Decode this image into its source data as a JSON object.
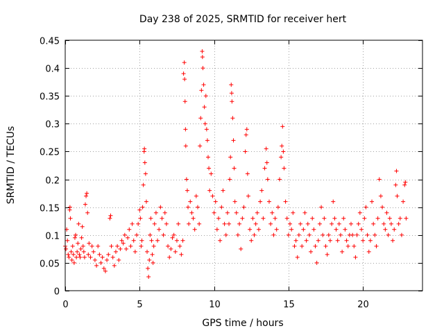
{
  "chart_data": {
    "type": "scatter",
    "title": "Day 238 of 2025, SRMTID for receiver hert",
    "xlabel": "GPS time / hours",
    "ylabel": "SRMTID / TECUs",
    "xlim": [
      0,
      24
    ],
    "ylim": [
      0,
      0.45
    ],
    "xticks": [
      0,
      5,
      10,
      15,
      20
    ],
    "yticks": [
      0,
      0.05,
      0.1,
      0.15,
      0.2,
      0.25,
      0.3,
      0.35,
      0.4,
      0.45
    ],
    "xtick_labels": [
      "0",
      "5",
      "10",
      "15",
      "20"
    ],
    "ytick_labels": [
      "0",
      "0.05",
      "0.1",
      "0.15",
      "0.2",
      "0.25",
      "0.3",
      "0.35",
      "0.4",
      "0.45"
    ],
    "grid": true,
    "marker": "+",
    "color": "#ff0000",
    "series": [
      {
        "name": "SRMTID",
        "points": [
          [
            0.0,
            0.08
          ],
          [
            0.05,
            0.075
          ],
          [
            0.1,
            0.11
          ],
          [
            0.15,
            0.09
          ],
          [
            0.2,
            0.065
          ],
          [
            0.25,
            0.06
          ],
          [
            0.3,
            0.145
          ],
          [
            0.32,
            0.15
          ],
          [
            0.35,
            0.13
          ],
          [
            0.4,
            0.07
          ],
          [
            0.45,
            0.055
          ],
          [
            0.5,
            0.08
          ],
          [
            0.55,
            0.065
          ],
          [
            0.6,
            0.05
          ],
          [
            0.65,
            0.095
          ],
          [
            0.7,
            0.1
          ],
          [
            0.75,
            0.06
          ],
          [
            0.8,
            0.07
          ],
          [
            0.85,
            0.085
          ],
          [
            0.9,
            0.12
          ],
          [
            0.95,
            0.065
          ],
          [
            1.0,
            0.06
          ],
          [
            1.05,
            0.075
          ],
          [
            1.1,
            0.095
          ],
          [
            1.15,
            0.115
          ],
          [
            1.2,
            0.08
          ],
          [
            1.25,
            0.07
          ],
          [
            1.3,
            0.06
          ],
          [
            1.35,
            0.155
          ],
          [
            1.4,
            0.17
          ],
          [
            1.45,
            0.175
          ],
          [
            1.5,
            0.14
          ],
          [
            1.55,
            0.065
          ],
          [
            1.6,
            0.085
          ],
          [
            1.7,
            0.06
          ],
          [
            1.8,
            0.08
          ],
          [
            1.9,
            0.07
          ],
          [
            2.0,
            0.055
          ],
          [
            2.1,
            0.045
          ],
          [
            2.2,
            0.08
          ],
          [
            2.3,
            0.065
          ],
          [
            2.4,
            0.05
          ],
          [
            2.5,
            0.06
          ],
          [
            2.6,
            0.04
          ],
          [
            2.7,
            0.035
          ],
          [
            2.8,
            0.055
          ],
          [
            2.9,
            0.065
          ],
          [
            3.0,
            0.13
          ],
          [
            3.05,
            0.135
          ],
          [
            3.1,
            0.08
          ],
          [
            3.2,
            0.06
          ],
          [
            3.3,
            0.045
          ],
          [
            3.4,
            0.07
          ],
          [
            3.5,
            0.08
          ],
          [
            3.6,
            0.055
          ],
          [
            3.7,
            0.075
          ],
          [
            3.8,
            0.09
          ],
          [
            3.9,
            0.085
          ],
          [
            4.0,
            0.1
          ],
          [
            4.1,
            0.075
          ],
          [
            4.2,
            0.095
          ],
          [
            4.3,
            0.11
          ],
          [
            4.4,
            0.08
          ],
          [
            4.5,
            0.12
          ],
          [
            4.6,
            0.09
          ],
          [
            4.7,
            0.07
          ],
          [
            4.8,
            0.1
          ],
          [
            4.9,
            0.12
          ],
          [
            5.0,
            0.145
          ],
          [
            5.05,
            0.13
          ],
          [
            5.1,
            0.08
          ],
          [
            5.15,
            0.09
          ],
          [
            5.2,
            0.15
          ],
          [
            5.25,
            0.19
          ],
          [
            5.3,
            0.25
          ],
          [
            5.32,
            0.255
          ],
          [
            5.35,
            0.23
          ],
          [
            5.4,
            0.21
          ],
          [
            5.45,
            0.16
          ],
          [
            5.5,
            0.07
          ],
          [
            5.55,
            0.04
          ],
          [
            5.6,
            0.025
          ],
          [
            5.65,
            0.055
          ],
          [
            5.7,
            0.1
          ],
          [
            5.75,
            0.13
          ],
          [
            5.8,
            0.09
          ],
          [
            5.85,
            0.065
          ],
          [
            5.9,
            0.05
          ],
          [
            5.95,
            0.08
          ],
          [
            6.0,
            0.12
          ],
          [
            6.1,
            0.14
          ],
          [
            6.2,
            0.09
          ],
          [
            6.3,
            0.11
          ],
          [
            6.4,
            0.15
          ],
          [
            6.5,
            0.13
          ],
          [
            6.6,
            0.1
          ],
          [
            6.7,
            0.14
          ],
          [
            6.8,
            0.12
          ],
          [
            6.9,
            0.08
          ],
          [
            7.0,
            0.06
          ],
          [
            7.1,
            0.075
          ],
          [
            7.2,
            0.095
          ],
          [
            7.3,
            0.1
          ],
          [
            7.4,
            0.07
          ],
          [
            7.5,
            0.09
          ],
          [
            7.6,
            0.12
          ],
          [
            7.7,
            0.08
          ],
          [
            7.8,
            0.065
          ],
          [
            7.9,
            0.09
          ],
          [
            7.95,
            0.39
          ],
          [
            8.0,
            0.41
          ],
          [
            8.02,
            0.38
          ],
          [
            8.05,
            0.34
          ],
          [
            8.08,
            0.29
          ],
          [
            8.1,
            0.26
          ],
          [
            8.15,
            0.2
          ],
          [
            8.2,
            0.18
          ],
          [
            8.25,
            0.15
          ],
          [
            8.3,
            0.12
          ],
          [
            8.4,
            0.16
          ],
          [
            8.5,
            0.14
          ],
          [
            8.6,
            0.13
          ],
          [
            8.7,
            0.11
          ],
          [
            8.8,
            0.17
          ],
          [
            8.9,
            0.15
          ],
          [
            9.0,
            0.12
          ],
          [
            9.05,
            0.26
          ],
          [
            9.1,
            0.31
          ],
          [
            9.15,
            0.36
          ],
          [
            9.2,
            0.43
          ],
          [
            9.22,
            0.42
          ],
          [
            9.25,
            0.4
          ],
          [
            9.3,
            0.37
          ],
          [
            9.35,
            0.33
          ],
          [
            9.4,
            0.3
          ],
          [
            9.45,
            0.35
          ],
          [
            9.5,
            0.29
          ],
          [
            9.55,
            0.27
          ],
          [
            9.6,
            0.24
          ],
          [
            9.65,
            0.22
          ],
          [
            9.7,
            0.18
          ],
          [
            9.8,
            0.21
          ],
          [
            9.9,
            0.17
          ],
          [
            10.0,
            0.14
          ],
          [
            10.1,
            0.16
          ],
          [
            10.2,
            0.11
          ],
          [
            10.3,
            0.13
          ],
          [
            10.4,
            0.09
          ],
          [
            10.5,
            0.15
          ],
          [
            10.6,
            0.18
          ],
          [
            10.7,
            0.12
          ],
          [
            10.8,
            0.1
          ],
          [
            10.9,
            0.14
          ],
          [
            11.0,
            0.12
          ],
          [
            11.05,
            0.2
          ],
          [
            11.1,
            0.24
          ],
          [
            11.15,
            0.37
          ],
          [
            11.18,
            0.355
          ],
          [
            11.2,
            0.34
          ],
          [
            11.25,
            0.31
          ],
          [
            11.3,
            0.27
          ],
          [
            11.35,
            0.22
          ],
          [
            11.4,
            0.16
          ],
          [
            11.5,
            0.14
          ],
          [
            11.6,
            0.1
          ],
          [
            11.7,
            0.12
          ],
          [
            11.8,
            0.075
          ],
          [
            11.9,
            0.13
          ],
          [
            12.0,
            0.15
          ],
          [
            12.1,
            0.25
          ],
          [
            12.15,
            0.28
          ],
          [
            12.2,
            0.29
          ],
          [
            12.25,
            0.21
          ],
          [
            12.3,
            0.17
          ],
          [
            12.4,
            0.11
          ],
          [
            12.5,
            0.09
          ],
          [
            12.6,
            0.13
          ],
          [
            12.7,
            0.1
          ],
          [
            12.8,
            0.12
          ],
          [
            12.9,
            0.14
          ],
          [
            13.0,
            0.11
          ],
          [
            13.1,
            0.16
          ],
          [
            13.2,
            0.18
          ],
          [
            13.3,
            0.13
          ],
          [
            13.4,
            0.22
          ],
          [
            13.5,
            0.255
          ],
          [
            13.55,
            0.23
          ],
          [
            13.6,
            0.2
          ],
          [
            13.7,
            0.16
          ],
          [
            13.8,
            0.12
          ],
          [
            13.9,
            0.14
          ],
          [
            14.0,
            0.1
          ],
          [
            14.1,
            0.13
          ],
          [
            14.2,
            0.11
          ],
          [
            14.3,
            0.15
          ],
          [
            14.4,
            0.2
          ],
          [
            14.5,
            0.24
          ],
          [
            14.55,
            0.26
          ],
          [
            14.6,
            0.295
          ],
          [
            14.65,
            0.25
          ],
          [
            14.7,
            0.22
          ],
          [
            14.8,
            0.16
          ],
          [
            14.9,
            0.13
          ],
          [
            15.0,
            0.1
          ],
          [
            15.1,
            0.12
          ],
          [
            15.2,
            0.11
          ],
          [
            15.3,
            0.14
          ],
          [
            15.4,
            0.08
          ],
          [
            15.5,
            0.09
          ],
          [
            15.6,
            0.06
          ],
          [
            15.7,
            0.1
          ],
          [
            15.8,
            0.12
          ],
          [
            15.9,
            0.08
          ],
          [
            16.0,
            0.11
          ],
          [
            16.1,
            0.14
          ],
          [
            16.2,
            0.09
          ],
          [
            16.3,
            0.12
          ],
          [
            16.4,
            0.1
          ],
          [
            16.5,
            0.07
          ],
          [
            16.6,
            0.13
          ],
          [
            16.7,
            0.11
          ],
          [
            16.8,
            0.08
          ],
          [
            16.9,
            0.05
          ],
          [
            17.0,
            0.09
          ],
          [
            17.1,
            0.12
          ],
          [
            17.2,
            0.15
          ],
          [
            17.3,
            0.1
          ],
          [
            17.4,
            0.13
          ],
          [
            17.5,
            0.08
          ],
          [
            17.6,
            0.065
          ],
          [
            17.7,
            0.1
          ],
          [
            17.8,
            0.09
          ],
          [
            17.9,
            0.12
          ],
          [
            18.0,
            0.16
          ],
          [
            18.1,
            0.13
          ],
          [
            18.2,
            0.11
          ],
          [
            18.3,
            0.09
          ],
          [
            18.4,
            0.12
          ],
          [
            18.5,
            0.1
          ],
          [
            18.6,
            0.07
          ],
          [
            18.7,
            0.13
          ],
          [
            18.8,
            0.11
          ],
          [
            18.9,
            0.09
          ],
          [
            19.0,
            0.08
          ],
          [
            19.1,
            0.1
          ],
          [
            19.2,
            0.12
          ],
          [
            19.3,
            0.1
          ],
          [
            19.4,
            0.08
          ],
          [
            19.5,
            0.06
          ],
          [
            19.6,
            0.1
          ],
          [
            19.7,
            0.12
          ],
          [
            19.8,
            0.14
          ],
          [
            19.9,
            0.11
          ],
          [
            20.0,
            0.09
          ],
          [
            20.1,
            0.13
          ],
          [
            20.2,
            0.15
          ],
          [
            20.3,
            0.1
          ],
          [
            20.4,
            0.07
          ],
          [
            20.5,
            0.09
          ],
          [
            20.6,
            0.16
          ],
          [
            20.7,
            0.12
          ],
          [
            20.8,
            0.1
          ],
          [
            20.9,
            0.08
          ],
          [
            21.0,
            0.13
          ],
          [
            21.1,
            0.2
          ],
          [
            21.2,
            0.17
          ],
          [
            21.3,
            0.15
          ],
          [
            21.4,
            0.12
          ],
          [
            21.5,
            0.11
          ],
          [
            21.6,
            0.14
          ],
          [
            21.7,
            0.1
          ],
          [
            21.8,
            0.13
          ],
          [
            21.9,
            0.12
          ],
          [
            22.0,
            0.09
          ],
          [
            22.1,
            0.11
          ],
          [
            22.2,
            0.19
          ],
          [
            22.25,
            0.215
          ],
          [
            22.3,
            0.17
          ],
          [
            22.4,
            0.12
          ],
          [
            22.5,
            0.13
          ],
          [
            22.6,
            0.1
          ],
          [
            22.7,
            0.16
          ],
          [
            22.8,
            0.19
          ],
          [
            22.85,
            0.195
          ],
          [
            22.9,
            0.13
          ]
        ]
      }
    ]
  }
}
